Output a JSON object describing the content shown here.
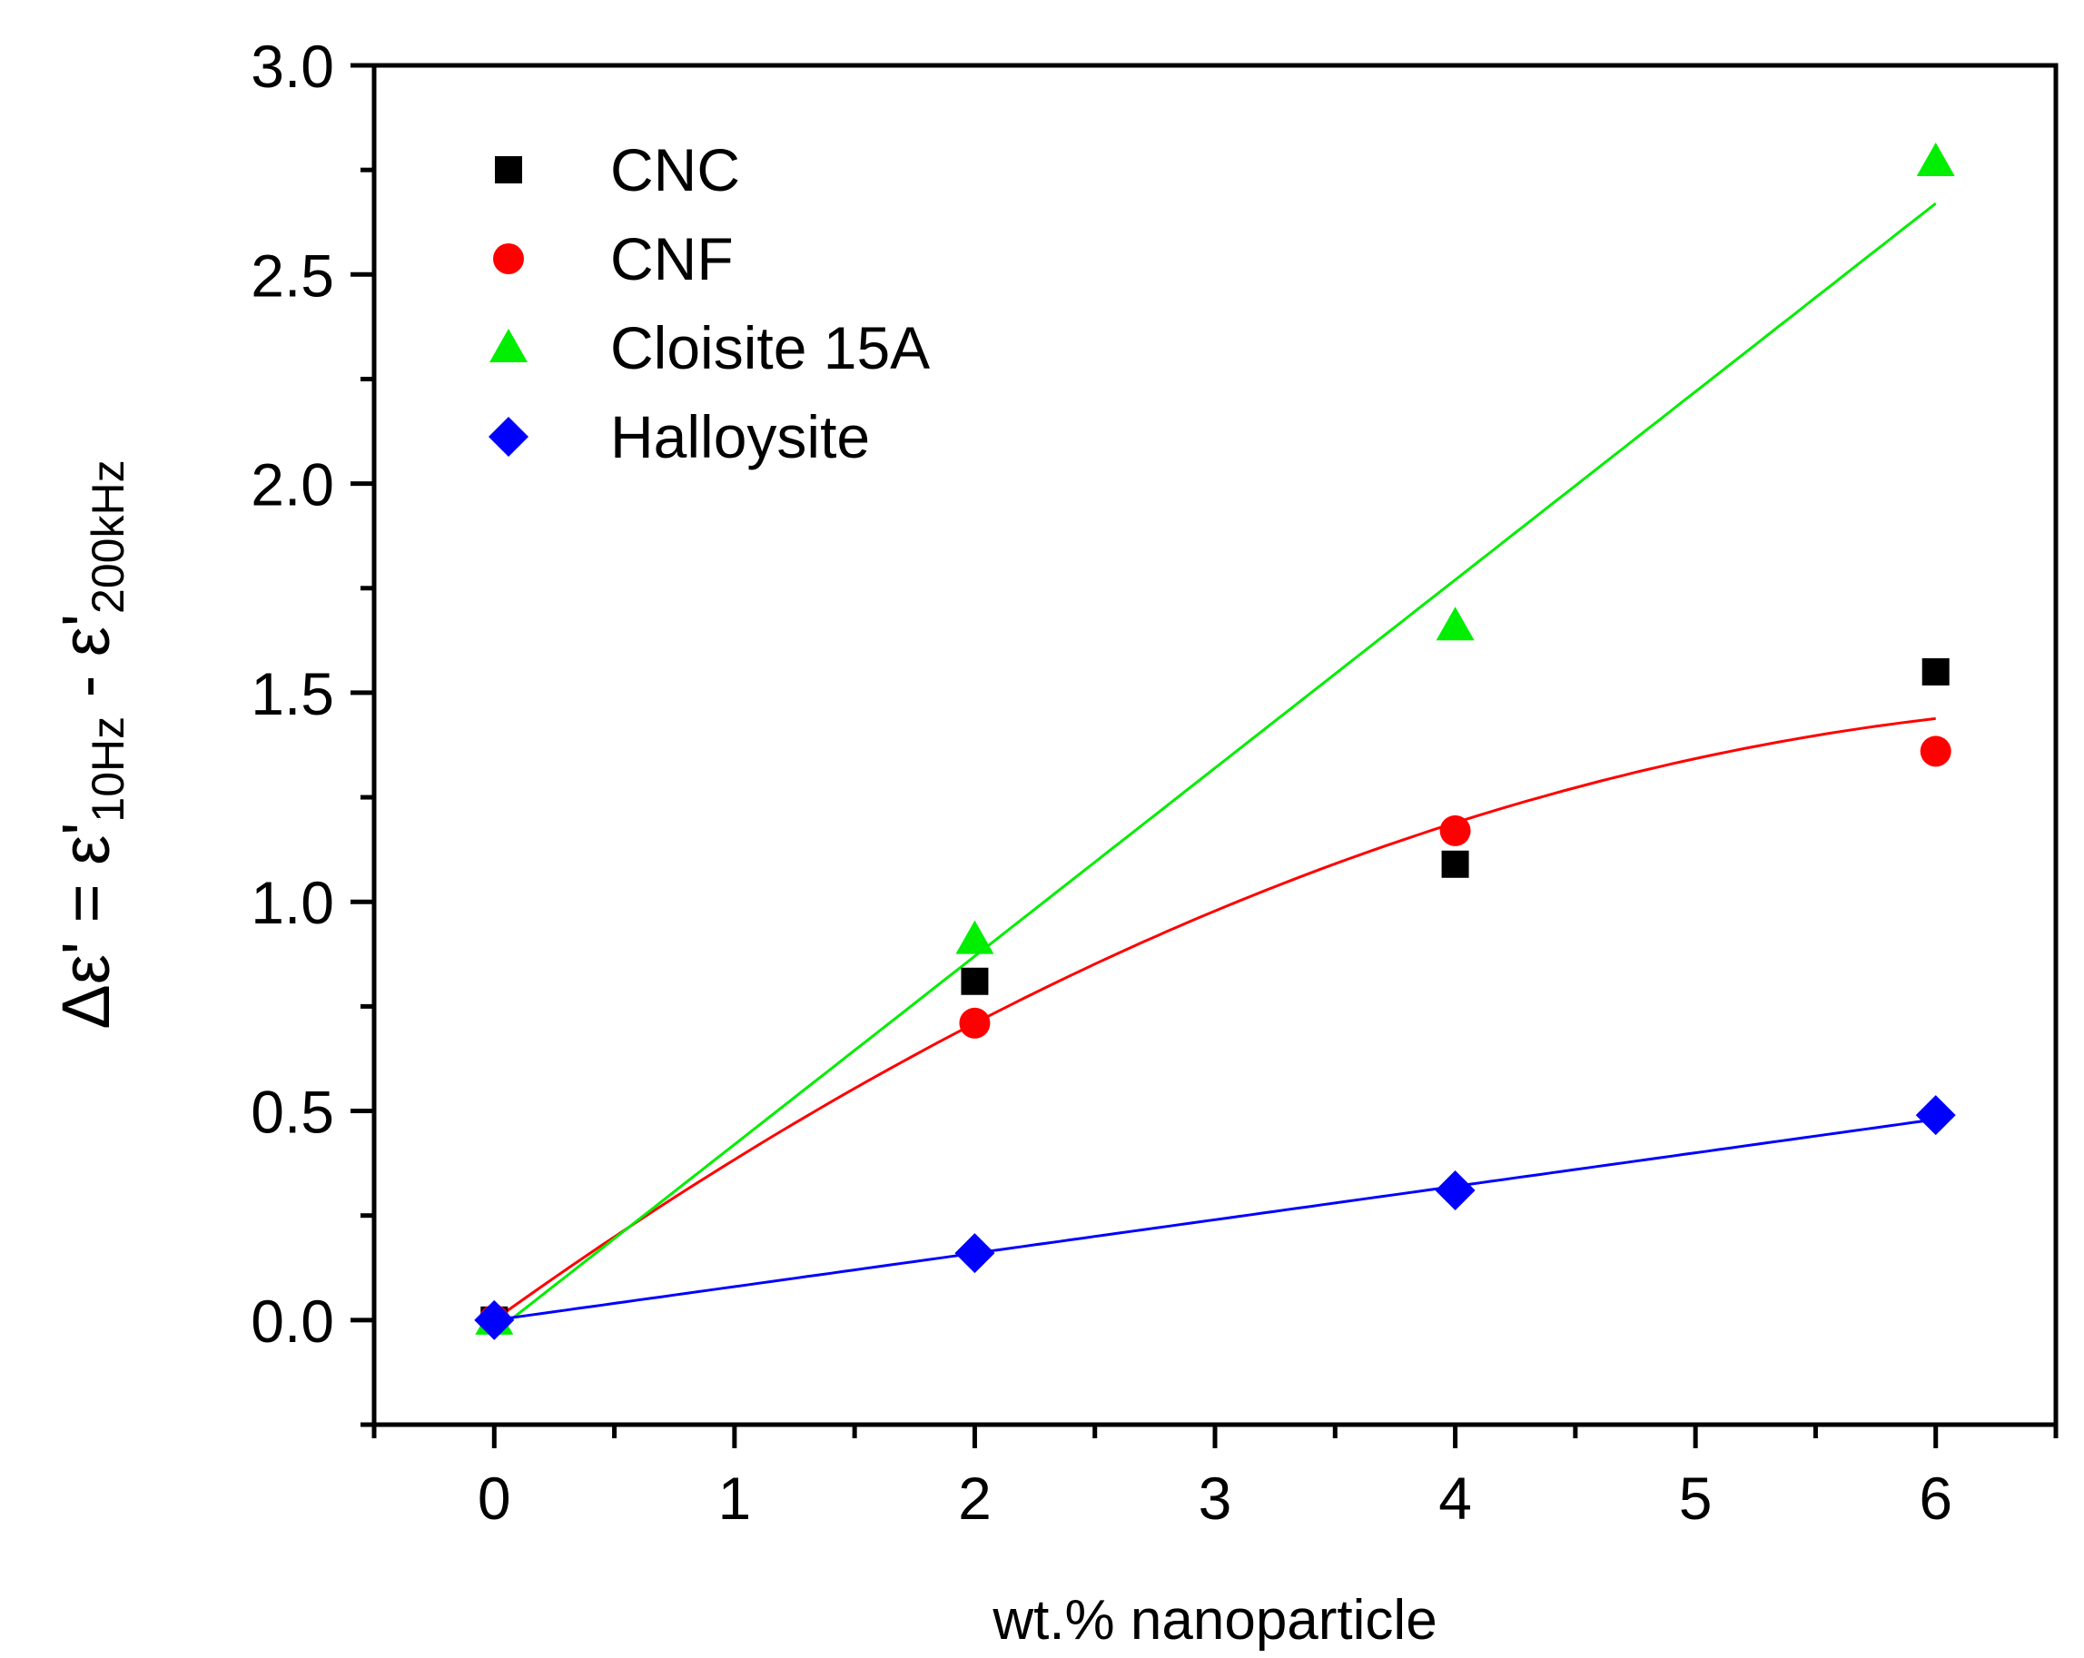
{
  "chart_data": {
    "type": "scatter",
    "xlabel": "wt.% nanoparticle",
    "ylabel": {
      "prefix": "Δε' = ε'",
      "sub1": "10Hz",
      "mid": " - ε'",
      "sub2": "200kHz"
    },
    "xlim": [
      -0.5,
      6.5
    ],
    "ylim": [
      -0.25,
      3.0
    ],
    "xticks": [
      0,
      1,
      2,
      3,
      4,
      5,
      6
    ],
    "yticks": [
      0.0,
      0.5,
      1.0,
      1.5,
      2.0,
      2.5,
      3.0
    ],
    "xtick_labels": [
      "0",
      "1",
      "2",
      "3",
      "4",
      "5",
      "6"
    ],
    "ytick_labels": [
      "0.0",
      "0.5",
      "1.0",
      "1.5",
      "2.0",
      "2.5",
      "3.0"
    ],
    "legend_position": "top-left",
    "series": [
      {
        "name": "CNC",
        "marker": "square",
        "color": "#000000",
        "x": [
          0,
          2,
          4,
          6
        ],
        "y": [
          0.0,
          0.81,
          1.09,
          1.55
        ],
        "fit": null
      },
      {
        "name": "CNF",
        "marker": "circle",
        "color": "#ff0000",
        "x": [
          0,
          2,
          4,
          6
        ],
        "y": [
          0.0,
          0.71,
          1.17,
          1.36
        ],
        "fit": {
          "type": "quadratic",
          "coeffs": [
            0.0,
            0.4125,
            -0.0288
          ]
        }
      },
      {
        "name": "Cloisite 15A",
        "marker": "triangle",
        "color": "#00ee00",
        "x": [
          0,
          2,
          4,
          6
        ],
        "y": [
          0.0,
          0.91,
          1.66,
          2.77
        ],
        "fit": {
          "type": "linear",
          "coeffs": [
            -0.03,
            0.45
          ]
        }
      },
      {
        "name": "Halloysite",
        "marker": "diamond",
        "color": "#0000ff",
        "x": [
          0,
          2,
          4,
          6
        ],
        "y": [
          0.0,
          0.16,
          0.31,
          0.49
        ],
        "fit": {
          "type": "linear",
          "coeffs": [
            0.0,
            0.08
          ]
        }
      }
    ]
  }
}
